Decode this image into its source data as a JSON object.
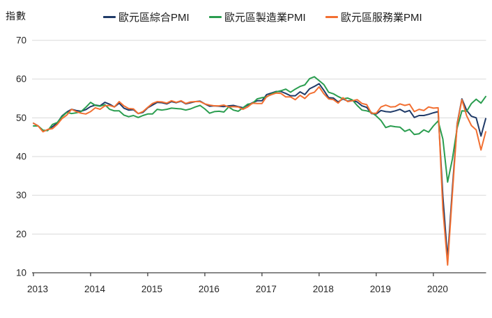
{
  "chart_data": {
    "type": "line",
    "title": "",
    "ylabel": "指數",
    "ylim": [
      10,
      70
    ],
    "y_ticks": [
      70,
      60,
      50,
      40,
      30,
      20,
      10
    ],
    "x_tick_labels": [
      "2013",
      "2014",
      "2015",
      "2016",
      "2017",
      "2018",
      "2019",
      "2020"
    ],
    "x_frequency": "monthly",
    "x_range": "2013-01 to 2020-12",
    "grid": "horizontal",
    "legend_position": "top",
    "axis_color": "#404040",
    "grid_color": "#d9d9d9",
    "tick_label_color": "#262626",
    "series": [
      {
        "name": "歐元區綜合PMI",
        "color": "#1f3a68",
        "values": [
          48.6,
          47.9,
          46.5,
          46.9,
          47.7,
          48.7,
          50.5,
          51.5,
          52.2,
          51.9,
          51.7,
          52.1,
          52.9,
          53.3,
          53.1,
          54.0,
          53.5,
          52.8,
          53.8,
          52.5,
          52.0,
          52.1,
          51.1,
          51.4,
          52.6,
          53.3,
          54.0,
          53.9,
          53.6,
          54.2,
          53.9,
          54.3,
          53.6,
          53.9,
          54.2,
          54.3,
          53.6,
          53.0,
          53.1,
          53.0,
          52.9,
          53.1,
          53.2,
          52.9,
          52.6,
          53.3,
          53.9,
          54.4,
          54.4,
          56.0,
          56.4,
          56.8,
          56.8,
          56.3,
          55.7,
          55.7,
          56.7,
          56.0,
          57.5,
          58.1,
          58.8,
          57.1,
          55.2,
          55.1,
          54.1,
          54.9,
          54.3,
          54.5,
          54.1,
          53.1,
          52.7,
          51.1,
          51.0,
          51.9,
          51.6,
          51.5,
          51.8,
          52.2,
          51.5,
          51.9,
          50.1,
          50.6,
          50.6,
          50.9,
          51.3,
          51.6,
          29.7,
          13.6,
          31.9,
          48.5,
          54.9,
          51.9,
          50.4,
          50.0,
          45.3,
          49.8
        ]
      },
      {
        "name": "歐元區製造業PMI",
        "color": "#2a9d4f",
        "values": [
          47.9,
          47.9,
          46.8,
          46.7,
          48.3,
          48.8,
          50.3,
          51.4,
          51.1,
          51.3,
          51.6,
          52.7,
          54.0,
          53.2,
          53.0,
          53.4,
          52.2,
          51.8,
          51.8,
          50.7,
          50.3,
          50.6,
          50.1,
          50.6,
          51.0,
          51.0,
          52.2,
          52.0,
          52.2,
          52.5,
          52.4,
          52.3,
          52.0,
          52.3,
          52.8,
          53.2,
          52.3,
          51.2,
          51.6,
          51.7,
          51.5,
          52.8,
          52.0,
          51.7,
          52.6,
          53.5,
          53.7,
          54.9,
          55.2,
          55.4,
          56.2,
          56.7,
          57.0,
          57.4,
          56.6,
          57.4,
          58.1,
          58.5,
          60.1,
          60.6,
          59.6,
          58.6,
          56.6,
          56.2,
          55.5,
          54.9,
          55.1,
          54.6,
          53.2,
          52.0,
          51.8,
          51.4,
          50.5,
          49.3,
          47.5,
          47.9,
          47.7,
          47.6,
          46.5,
          47.0,
          45.7,
          45.9,
          46.9,
          46.3,
          47.9,
          49.2,
          44.5,
          33.4,
          39.4,
          47.4,
          51.8,
          51.7,
          53.7,
          54.8,
          53.8,
          55.5
        ]
      },
      {
        "name": "歐元區服務業PMI",
        "color": "#f26f31",
        "values": [
          48.6,
          47.9,
          46.4,
          47.0,
          47.2,
          48.3,
          49.8,
          50.7,
          52.2,
          51.6,
          51.2,
          51.0,
          51.6,
          52.6,
          52.2,
          53.1,
          53.2,
          52.8,
          54.2,
          53.1,
          52.4,
          52.3,
          51.1,
          51.6,
          52.7,
          53.7,
          54.2,
          54.1,
          53.8,
          54.4,
          54.0,
          54.4,
          53.7,
          54.1,
          54.2,
          54.2,
          53.6,
          53.3,
          53.1,
          53.1,
          53.3,
          52.8,
          52.9,
          52.8,
          52.2,
          52.8,
          53.8,
          53.7,
          53.7,
          55.5,
          56.0,
          56.4,
          56.3,
          55.4,
          55.4,
          54.7,
          55.8,
          55.0,
          56.2,
          56.6,
          58.0,
          56.2,
          54.9,
          54.7,
          53.8,
          55.2,
          54.2,
          54.4,
          54.7,
          53.7,
          53.4,
          51.2,
          51.2,
          52.8,
          53.3,
          52.8,
          52.9,
          53.6,
          53.2,
          53.5,
          51.6,
          52.2,
          51.9,
          52.8,
          52.5,
          52.6,
          26.4,
          12.0,
          30.5,
          48.3,
          54.7,
          50.5,
          48.0,
          46.9,
          41.7,
          46.4
        ]
      }
    ]
  }
}
